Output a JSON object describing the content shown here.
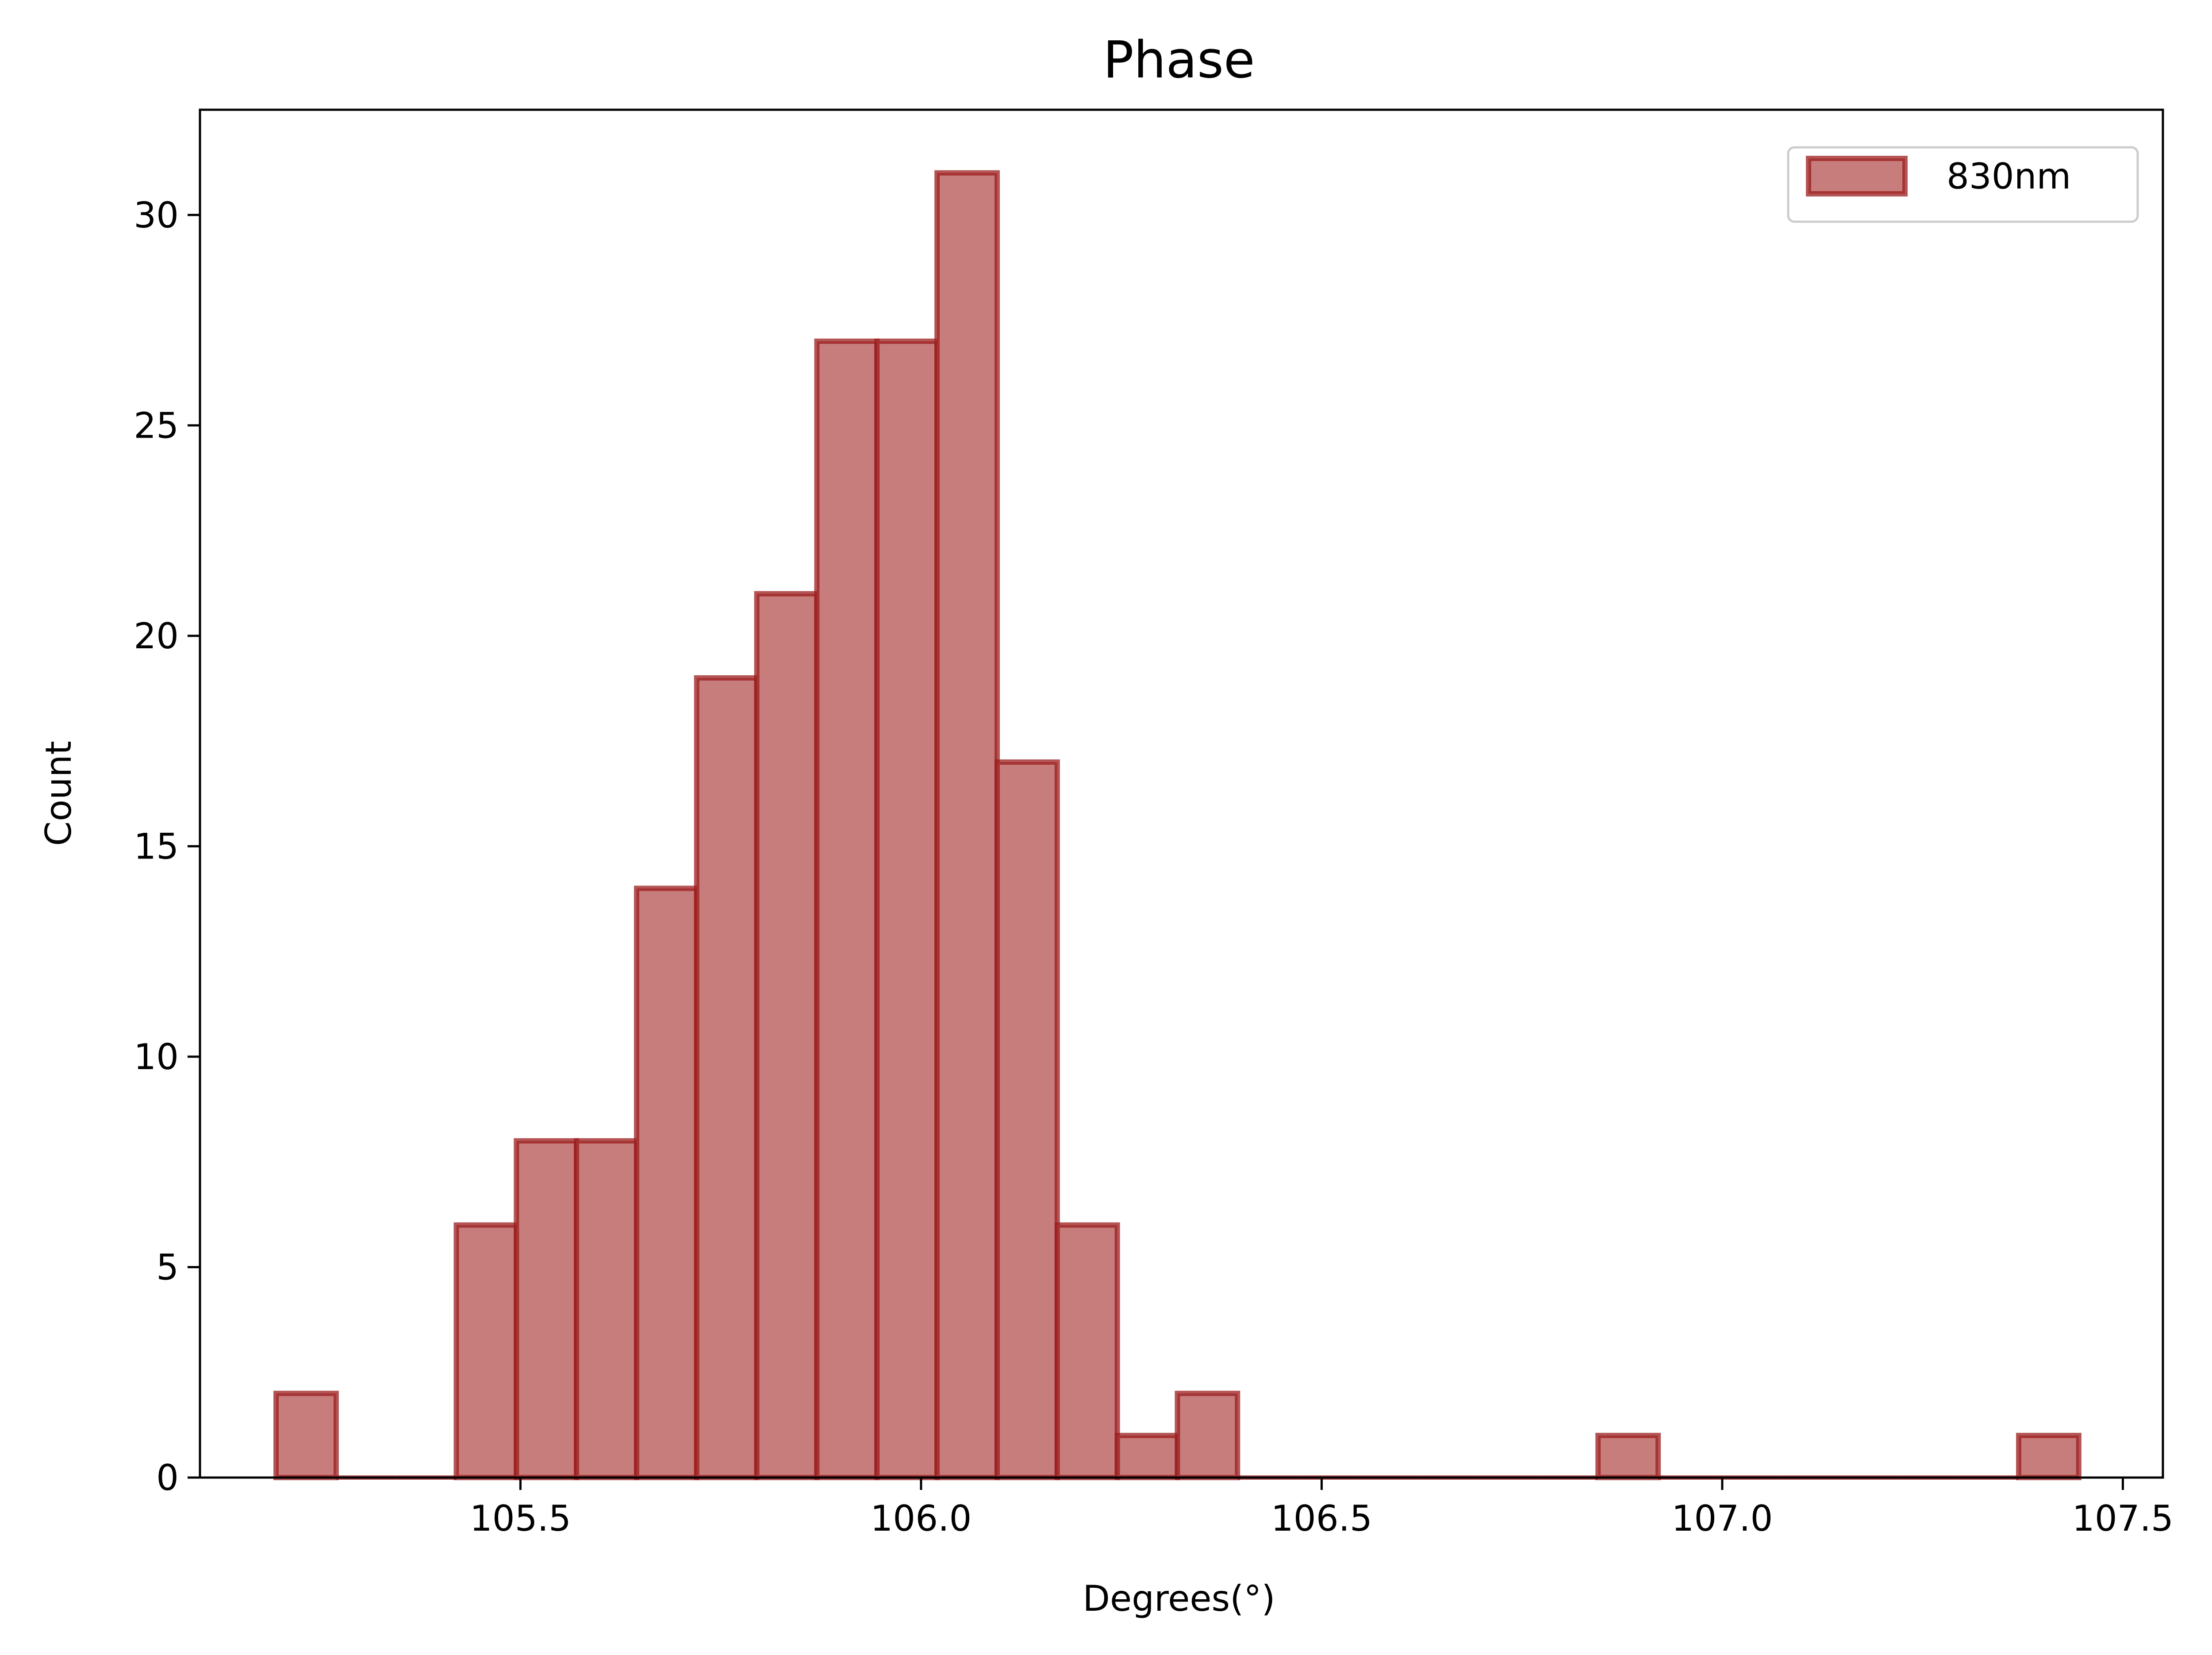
{
  "chart_data": {
    "type": "bar",
    "title": "Phase",
    "xlabel": "Degrees(°)",
    "ylabel": "Count",
    "xlim": [
      105.1,
      107.55
    ],
    "ylim": [
      0,
      32.5
    ],
    "xticks": [
      {
        "value": 105.5,
        "label": "105.5"
      },
      {
        "value": 106.0,
        "label": "106.0"
      },
      {
        "value": 106.5,
        "label": "106.5"
      },
      {
        "value": 107.0,
        "label": "107.0"
      },
      {
        "value": 107.5,
        "label": "107.5"
      }
    ],
    "yticks": [
      {
        "value": 0,
        "label": "0"
      },
      {
        "value": 5,
        "label": "5"
      },
      {
        "value": 10,
        "label": "10"
      },
      {
        "value": 15,
        "label": "15"
      },
      {
        "value": 20,
        "label": "20"
      },
      {
        "value": 25,
        "label": "25"
      },
      {
        "value": 30,
        "label": "30"
      }
    ],
    "bin_edges": [
      105.195,
      105.27,
      105.345,
      105.42,
      105.495,
      105.57,
      105.645,
      105.72,
      105.795,
      105.87,
      105.945,
      106.02,
      106.095,
      106.17,
      106.245,
      106.32,
      106.395,
      106.47,
      106.545,
      106.62,
      106.695,
      106.77,
      106.845,
      106.92,
      106.995,
      107.07,
      107.145,
      107.22,
      107.295,
      107.37,
      107.445
    ],
    "counts": [
      2,
      0,
      0,
      6,
      8,
      8,
      14,
      19,
      21,
      27,
      27,
      31,
      17,
      6,
      1,
      2,
      0,
      0,
      0,
      0,
      0,
      0,
      1,
      0,
      0,
      0,
      0,
      0,
      0,
      1
    ],
    "series": [
      {
        "name": "830nm",
        "fill": "#c87d7d",
        "edge": "#9b1c1c"
      }
    ],
    "legend": {
      "position": "top-right"
    },
    "grid": false
  }
}
